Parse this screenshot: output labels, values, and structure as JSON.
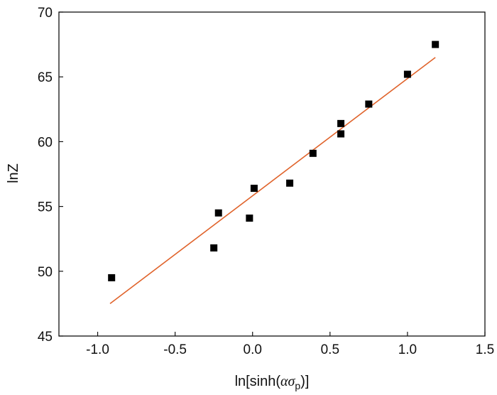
{
  "chart_data": {
    "type": "scatter",
    "title": "",
    "xlabel": {
      "prefix": "ln[sinh(",
      "symbol": "ασ",
      "subscript": "p",
      "suffix": ")]"
    },
    "ylabel": "lnZ",
    "xlim": [
      -1.25,
      1.5
    ],
    "ylim": [
      45,
      70
    ],
    "xticks": [
      "-1.0",
      "-0.5",
      "0.0",
      "0.5",
      "1.0",
      "1.5"
    ],
    "yticks": [
      "45",
      "50",
      "55",
      "60",
      "65",
      "70"
    ],
    "grid": false,
    "legend": "none",
    "series": [
      {
        "marker": "square",
        "color": "#000000",
        "x": [
          -0.91,
          -0.25,
          -0.22,
          -0.02,
          0.01,
          0.24,
          0.39,
          0.57,
          0.57,
          0.75,
          1.0,
          1.18
        ],
        "y": [
          49.5,
          51.8,
          54.5,
          54.1,
          56.4,
          56.8,
          59.1,
          60.6,
          61.4,
          62.9,
          65.2,
          67.5
        ]
      }
    ],
    "fit_line": {
      "color": "#e0632b",
      "x": [
        -0.92,
        1.18
      ],
      "y": [
        47.5,
        66.5
      ]
    }
  }
}
